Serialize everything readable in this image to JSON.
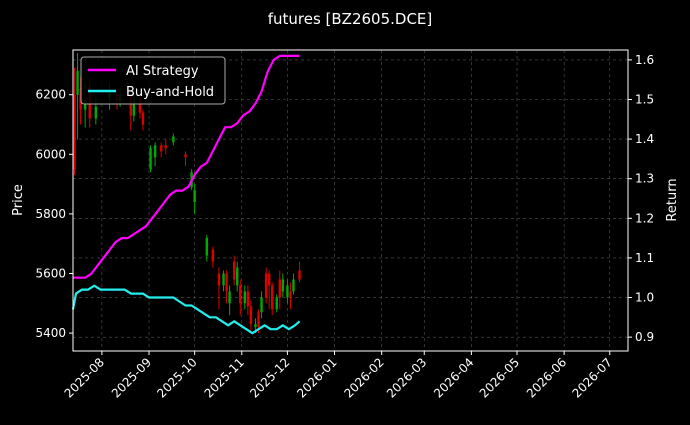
{
  "chart_data": {
    "type": "line",
    "title": "futures [BZ2605.DCE]",
    "ylabel_left": "Price",
    "ylabel_right": "Return",
    "ylim_left": [
      5340,
      6350
    ],
    "ylim_right": [
      0.865,
      1.625
    ],
    "xlim": [
      "2025-07-13",
      "2026-07-13"
    ],
    "grid": true,
    "legend_position": "top-left",
    "x_ticks": [
      "2025-08",
      "2025-09",
      "2025-10",
      "2025-11",
      "2025-12",
      "2026-01",
      "2026-02",
      "2026-03",
      "2026-04",
      "2026-05",
      "2026-06",
      "2026-07"
    ],
    "y_ticks_left": [
      "5400",
      "5600",
      "5800",
      "6000",
      "6200"
    ],
    "y_ticks_right": [
      "0.9",
      "1.0",
      "1.1",
      "1.2",
      "1.3",
      "1.4",
      "1.5",
      "1.6"
    ],
    "series": [
      {
        "name": "AI Strategy",
        "color": "#ff00ff",
        "axis": "right",
        "points": [
          [
            "2025-07-13",
            1.05
          ],
          [
            "2025-07-17",
            1.05
          ],
          [
            "2025-07-21",
            1.05
          ],
          [
            "2025-07-25",
            1.06
          ],
          [
            "2025-07-29",
            1.08
          ],
          [
            "2025-08-02",
            1.1
          ],
          [
            "2025-08-06",
            1.12
          ],
          [
            "2025-08-10",
            1.14
          ],
          [
            "2025-08-14",
            1.15
          ],
          [
            "2025-08-18",
            1.15
          ],
          [
            "2025-08-22",
            1.16
          ],
          [
            "2025-08-26",
            1.17
          ],
          [
            "2025-08-30",
            1.18
          ],
          [
            "2025-09-03",
            1.2
          ],
          [
            "2025-09-07",
            1.22
          ],
          [
            "2025-09-11",
            1.24
          ],
          [
            "2025-09-15",
            1.26
          ],
          [
            "2025-09-19",
            1.27
          ],
          [
            "2025-09-23",
            1.27
          ],
          [
            "2025-09-27",
            1.28
          ],
          [
            "2025-10-01",
            1.31
          ],
          [
            "2025-10-05",
            1.33
          ],
          [
            "2025-10-09",
            1.34
          ],
          [
            "2025-10-13",
            1.37
          ],
          [
            "2025-10-17",
            1.4
          ],
          [
            "2025-10-21",
            1.43
          ],
          [
            "2025-10-25",
            1.43
          ],
          [
            "2025-10-29",
            1.44
          ],
          [
            "2025-11-02",
            1.46
          ],
          [
            "2025-11-06",
            1.47
          ],
          [
            "2025-11-10",
            1.49
          ],
          [
            "2025-11-14",
            1.52
          ],
          [
            "2025-11-18",
            1.57
          ],
          [
            "2025-11-22",
            1.6
          ],
          [
            "2025-11-26",
            1.61
          ],
          [
            "2025-11-30",
            1.61
          ],
          [
            "2025-12-05",
            1.61
          ],
          [
            "2025-12-09",
            1.61
          ]
        ]
      },
      {
        "name": "Buy-and-Hold",
        "color": "#22eeee",
        "axis": "right",
        "points": [
          [
            "2025-07-13",
            0.97
          ],
          [
            "2025-07-15",
            1.01
          ],
          [
            "2025-07-19",
            1.02
          ],
          [
            "2025-07-23",
            1.02
          ],
          [
            "2025-07-27",
            1.03
          ],
          [
            "2025-07-31",
            1.02
          ],
          [
            "2025-08-04",
            1.02
          ],
          [
            "2025-08-08",
            1.02
          ],
          [
            "2025-08-12",
            1.02
          ],
          [
            "2025-08-16",
            1.02
          ],
          [
            "2025-08-20",
            1.01
          ],
          [
            "2025-08-24",
            1.01
          ],
          [
            "2025-08-28",
            1.01
          ],
          [
            "2025-09-01",
            1.0
          ],
          [
            "2025-09-05",
            1.0
          ],
          [
            "2025-09-09",
            1.0
          ],
          [
            "2025-09-13",
            1.0
          ],
          [
            "2025-09-17",
            1.0
          ],
          [
            "2025-09-21",
            0.99
          ],
          [
            "2025-09-25",
            0.98
          ],
          [
            "2025-09-29",
            0.98
          ],
          [
            "2025-10-03",
            0.97
          ],
          [
            "2025-10-07",
            0.96
          ],
          [
            "2025-10-11",
            0.95
          ],
          [
            "2025-10-15",
            0.95
          ],
          [
            "2025-10-19",
            0.94
          ],
          [
            "2025-10-23",
            0.93
          ],
          [
            "2025-10-27",
            0.94
          ],
          [
            "2025-10-31",
            0.93
          ],
          [
            "2025-11-04",
            0.92
          ],
          [
            "2025-11-08",
            0.91
          ],
          [
            "2025-11-12",
            0.92
          ],
          [
            "2025-11-16",
            0.93
          ],
          [
            "2025-11-20",
            0.92
          ],
          [
            "2025-11-24",
            0.92
          ],
          [
            "2025-11-28",
            0.93
          ],
          [
            "2025-12-02",
            0.92
          ],
          [
            "2025-12-06",
            0.93
          ],
          [
            "2025-12-09",
            0.94
          ]
        ]
      }
    ],
    "candles": {
      "axis": "left",
      "up_color": "#00aa00",
      "down_color": "#dd0000",
      "items": [
        [
          "2025-07-14",
          5950,
          6200,
          5930,
          6290,
          "down"
        ],
        [
          "2025-07-16",
          6200,
          6280,
          6050,
          6340,
          "up"
        ],
        [
          "2025-07-18",
          6220,
          6150,
          6100,
          6260,
          "down"
        ],
        [
          "2025-07-21",
          6150,
          6180,
          6090,
          6240,
          "up"
        ],
        [
          "2025-07-24",
          6230,
          6120,
          6090,
          6260,
          "down"
        ],
        [
          "2025-07-28",
          6120,
          6160,
          6100,
          6190,
          "up"
        ],
        [
          "2025-08-06",
          6190,
          6210,
          6150,
          6240,
          "up"
        ],
        [
          "2025-08-11",
          6200,
          6180,
          6150,
          6220,
          "down"
        ],
        [
          "2025-08-13",
          6180,
          6200,
          6160,
          6230,
          "up"
        ],
        [
          "2025-08-20",
          6190,
          6130,
          6080,
          6200,
          "down"
        ],
        [
          "2025-08-22",
          6130,
          6180,
          6110,
          6200,
          "up"
        ],
        [
          "2025-08-26",
          6180,
          6140,
          6120,
          6190,
          "down"
        ],
        [
          "2025-08-28",
          6140,
          6100,
          6080,
          6150,
          "down"
        ],
        [
          "2025-09-02",
          6020,
          5950,
          5940,
          6030,
          "up"
        ],
        [
          "2025-09-05",
          5990,
          6030,
          5960,
          6040,
          "up"
        ],
        [
          "2025-09-09",
          6030,
          6010,
          5990,
          6040,
          "down"
        ],
        [
          "2025-09-12",
          6030,
          6020,
          6000,
          6050,
          "down"
        ],
        [
          "2025-09-17",
          6040,
          6060,
          6030,
          6070,
          "up"
        ],
        [
          "2025-09-25",
          5990,
          6000,
          5960,
          6010,
          "down"
        ],
        [
          "2025-09-29",
          5940,
          5890,
          5880,
          5950,
          "up"
        ],
        [
          "2025-10-01",
          5880,
          5840,
          5800,
          5900,
          "up"
        ],
        [
          "2025-10-09",
          5720,
          5660,
          5640,
          5730,
          "up"
        ],
        [
          "2025-10-13",
          5640,
          5680,
          5620,
          5690,
          "down"
        ],
        [
          "2025-10-17",
          5600,
          5560,
          5480,
          5620,
          "down"
        ],
        [
          "2025-10-20",
          5560,
          5600,
          5540,
          5610,
          "up"
        ],
        [
          "2025-10-22",
          5600,
          5540,
          5500,
          5610,
          "down"
        ],
        [
          "2025-10-24",
          5540,
          5500,
          5460,
          5560,
          "up"
        ],
        [
          "2025-10-27",
          5580,
          5640,
          5560,
          5660,
          "down"
        ],
        [
          "2025-10-29",
          5620,
          5560,
          5540,
          5640,
          "up"
        ],
        [
          "2025-10-31",
          5560,
          5500,
          5460,
          5580,
          "down"
        ],
        [
          "2025-11-03",
          5500,
          5540,
          5480,
          5560,
          "up"
        ],
        [
          "2025-11-05",
          5540,
          5490,
          5460,
          5560,
          "down"
        ],
        [
          "2025-11-07",
          5490,
          5430,
          5400,
          5510,
          "down"
        ],
        [
          "2025-11-10",
          5430,
          5420,
          5400,
          5450,
          "up"
        ],
        [
          "2025-11-12",
          5420,
          5470,
          5400,
          5480,
          "down"
        ],
        [
          "2025-11-14",
          5470,
          5520,
          5450,
          5540,
          "up"
        ],
        [
          "2025-11-17",
          5520,
          5600,
          5500,
          5620,
          "down"
        ],
        [
          "2025-11-19",
          5600,
          5560,
          5480,
          5610,
          "down"
        ],
        [
          "2025-11-21",
          5560,
          5480,
          5460,
          5570,
          "down"
        ],
        [
          "2025-11-24",
          5480,
          5520,
          5470,
          5530,
          "up"
        ],
        [
          "2025-11-26",
          5520,
          5580,
          5480,
          5610,
          "down"
        ],
        [
          "2025-11-28",
          5580,
          5540,
          5520,
          5600,
          "up"
        ],
        [
          "2025-12-01",
          5560,
          5520,
          5500,
          5580,
          "up"
        ],
        [
          "2025-12-03",
          5520,
          5540,
          5480,
          5570,
          "down"
        ],
        [
          "2025-12-05",
          5540,
          5580,
          5530,
          5600,
          "up"
        ],
        [
          "2025-12-09",
          5580,
          5610,
          5570,
          5640,
          "down"
        ]
      ]
    }
  }
}
